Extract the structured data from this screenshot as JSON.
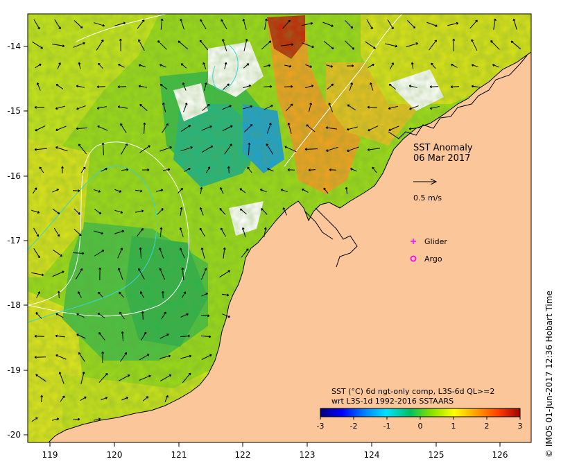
{
  "map": {
    "title": "SST Anomaly",
    "date": "06 Mar 2017",
    "colors": {
      "land": "#fbc79a",
      "no_data": "#ffffff",
      "coast": "#000000",
      "glider": "#ff00ff",
      "argo": "#ff00ff",
      "contour_white": "#ffffff",
      "contour_cyan": "#33d6d6"
    },
    "axes": {
      "x_ticks": [
        "119",
        "120",
        "121",
        "122",
        "123",
        "124",
        "125",
        "126"
      ],
      "y_ticks": [
        "-14",
        "-15",
        "-16",
        "-17",
        "-18",
        "-19",
        "-20"
      ]
    },
    "current_scale": {
      "label": "0.5 m/s",
      "value": 0.5
    },
    "legend": {
      "glider_label": "Glider",
      "argo_label": "Argo",
      "glider_marker": "plus-dot",
      "argo_marker": "circle"
    },
    "colorbar": {
      "line1": "SST (°C) 6d ngt-only comp, L3S-6d QL>=2",
      "line2": "wrt L3S-1d 1992-2016 SSTAARS",
      "ticks": [
        "-3",
        "-2",
        "-1",
        "0",
        "1",
        "2",
        "3"
      ],
      "min": -3,
      "max": 3,
      "stops": [
        "#00007f",
        "#0000ff",
        "#0080ff",
        "#00e0ff",
        "#00c060",
        "#80e000",
        "#ffff00",
        "#ffa000",
        "#ff4000",
        "#a00000"
      ]
    },
    "credit": "© IMOS 01-Jun-2017 12:36 Hobart Time"
  }
}
